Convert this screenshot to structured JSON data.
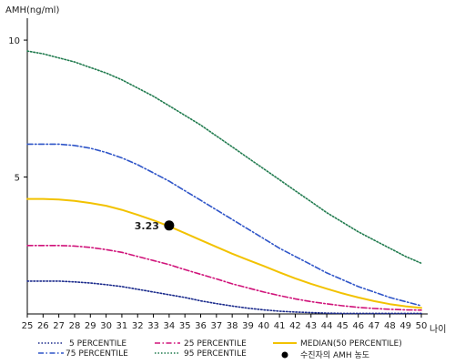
{
  "chart_data": {
    "type": "line",
    "ylabel": "AMH(ng/ml)",
    "xlabel": "나이",
    "x": [
      25,
      26,
      27,
      28,
      29,
      30,
      31,
      32,
      33,
      34,
      35,
      36,
      37,
      38,
      39,
      40,
      41,
      42,
      43,
      44,
      45,
      46,
      47,
      48,
      49,
      50
    ],
    "xlim": [
      25,
      50
    ],
    "ylim": [
      0,
      10.8
    ],
    "yticks": [
      5,
      10
    ],
    "grid": false,
    "legend_position": "bottom",
    "series": [
      {
        "name": "5 PERCENTILE",
        "color": "#1a2a8c",
        "style": "dotted",
        "values": [
          1.2,
          1.2,
          1.2,
          1.17,
          1.13,
          1.07,
          1.0,
          0.9,
          0.8,
          0.7,
          0.6,
          0.48,
          0.38,
          0.29,
          0.21,
          0.15,
          0.1,
          0.07,
          0.05,
          0.03,
          0.02,
          0.02,
          0.02,
          0.02,
          0.02,
          0.02
        ]
      },
      {
        "name": "25 PERCENTILE",
        "color": "#d0137a",
        "style": "dashdot",
        "values": [
          2.5,
          2.5,
          2.5,
          2.48,
          2.43,
          2.35,
          2.25,
          2.1,
          1.95,
          1.8,
          1.62,
          1.45,
          1.28,
          1.1,
          0.95,
          0.8,
          0.67,
          0.55,
          0.45,
          0.37,
          0.3,
          0.24,
          0.2,
          0.17,
          0.15,
          0.14
        ]
      },
      {
        "name": "MEDIAN(50 PERCENTILE)",
        "color": "#f2c200",
        "style": "solid",
        "values": [
          4.2,
          4.2,
          4.18,
          4.13,
          4.05,
          3.95,
          3.8,
          3.62,
          3.42,
          3.2,
          2.95,
          2.7,
          2.45,
          2.2,
          1.97,
          1.75,
          1.52,
          1.3,
          1.1,
          0.92,
          0.75,
          0.6,
          0.47,
          0.36,
          0.28,
          0.22
        ]
      },
      {
        "name": "75 PERCENTILE",
        "color": "#2f55c8",
        "style": "dashdot",
        "values": [
          6.2,
          6.2,
          6.2,
          6.15,
          6.05,
          5.9,
          5.7,
          5.45,
          5.15,
          4.85,
          4.5,
          4.15,
          3.8,
          3.45,
          3.1,
          2.75,
          2.4,
          2.1,
          1.8,
          1.5,
          1.25,
          1.0,
          0.8,
          0.6,
          0.45,
          0.3
        ]
      },
      {
        "name": "95 PERCENTILE",
        "color": "#1f7a4d",
        "style": "dotted",
        "values": [
          9.6,
          9.5,
          9.35,
          9.2,
          9.0,
          8.8,
          8.55,
          8.25,
          7.95,
          7.6,
          7.25,
          6.9,
          6.5,
          6.1,
          5.7,
          5.3,
          4.9,
          4.5,
          4.1,
          3.7,
          3.35,
          3.0,
          2.7,
          2.4,
          2.1,
          1.85
        ]
      }
    ],
    "marker": {
      "label": "수진자의 AMH 농도",
      "x": 34,
      "y": 3.23,
      "value_label": "3.23",
      "color": "#000000"
    }
  }
}
